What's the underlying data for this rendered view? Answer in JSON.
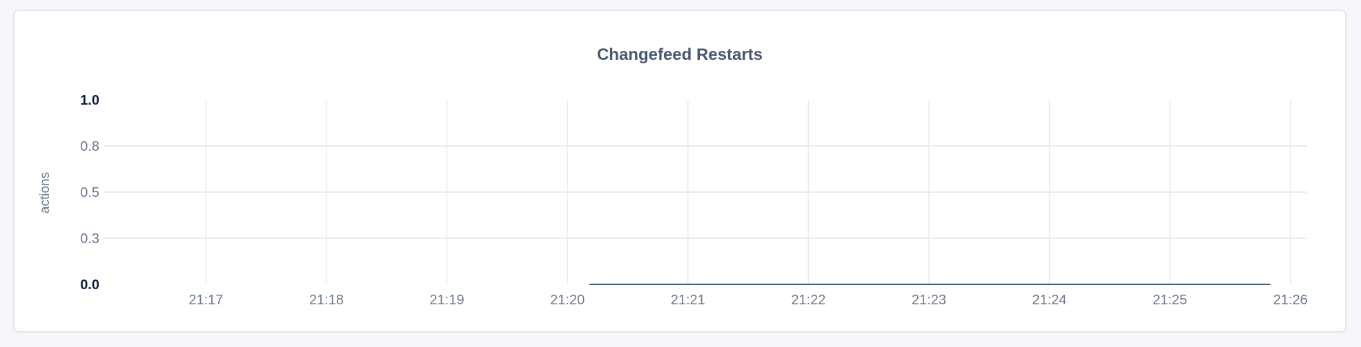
{
  "chart_data": {
    "type": "line",
    "title": "Changefeed Restarts",
    "ylabel": "actions",
    "xlabel": "",
    "ylim": [
      0,
      1
    ],
    "xlim": [
      "21:16:09",
      "21:26:08"
    ],
    "grid": true,
    "y_ticks": [
      {
        "value": 0,
        "label": "0.0",
        "bold": true
      },
      {
        "value": 0.25,
        "label": "0.3",
        "bold": false
      },
      {
        "value": 0.5,
        "label": "0.5",
        "bold": false
      },
      {
        "value": 0.75,
        "label": "0.8",
        "bold": false
      },
      {
        "value": 1,
        "label": "1.0",
        "bold": true
      }
    ],
    "x_ticks": [
      "21:17",
      "21:18",
      "21:19",
      "21:20",
      "21:21",
      "21:22",
      "21:23",
      "21:24",
      "21:25",
      "21:26"
    ],
    "series": [
      {
        "color": "#475872",
        "points": [
          {
            "x": "21:20:11",
            "y": 0
          },
          {
            "x": "21:25:50",
            "y": 0
          }
        ]
      }
    ],
    "colors": {
      "grid": "#e7eaf0",
      "tick_label": "#6b7a90",
      "tick_label_bold": "#0c1f3d",
      "title": "#475872"
    }
  }
}
